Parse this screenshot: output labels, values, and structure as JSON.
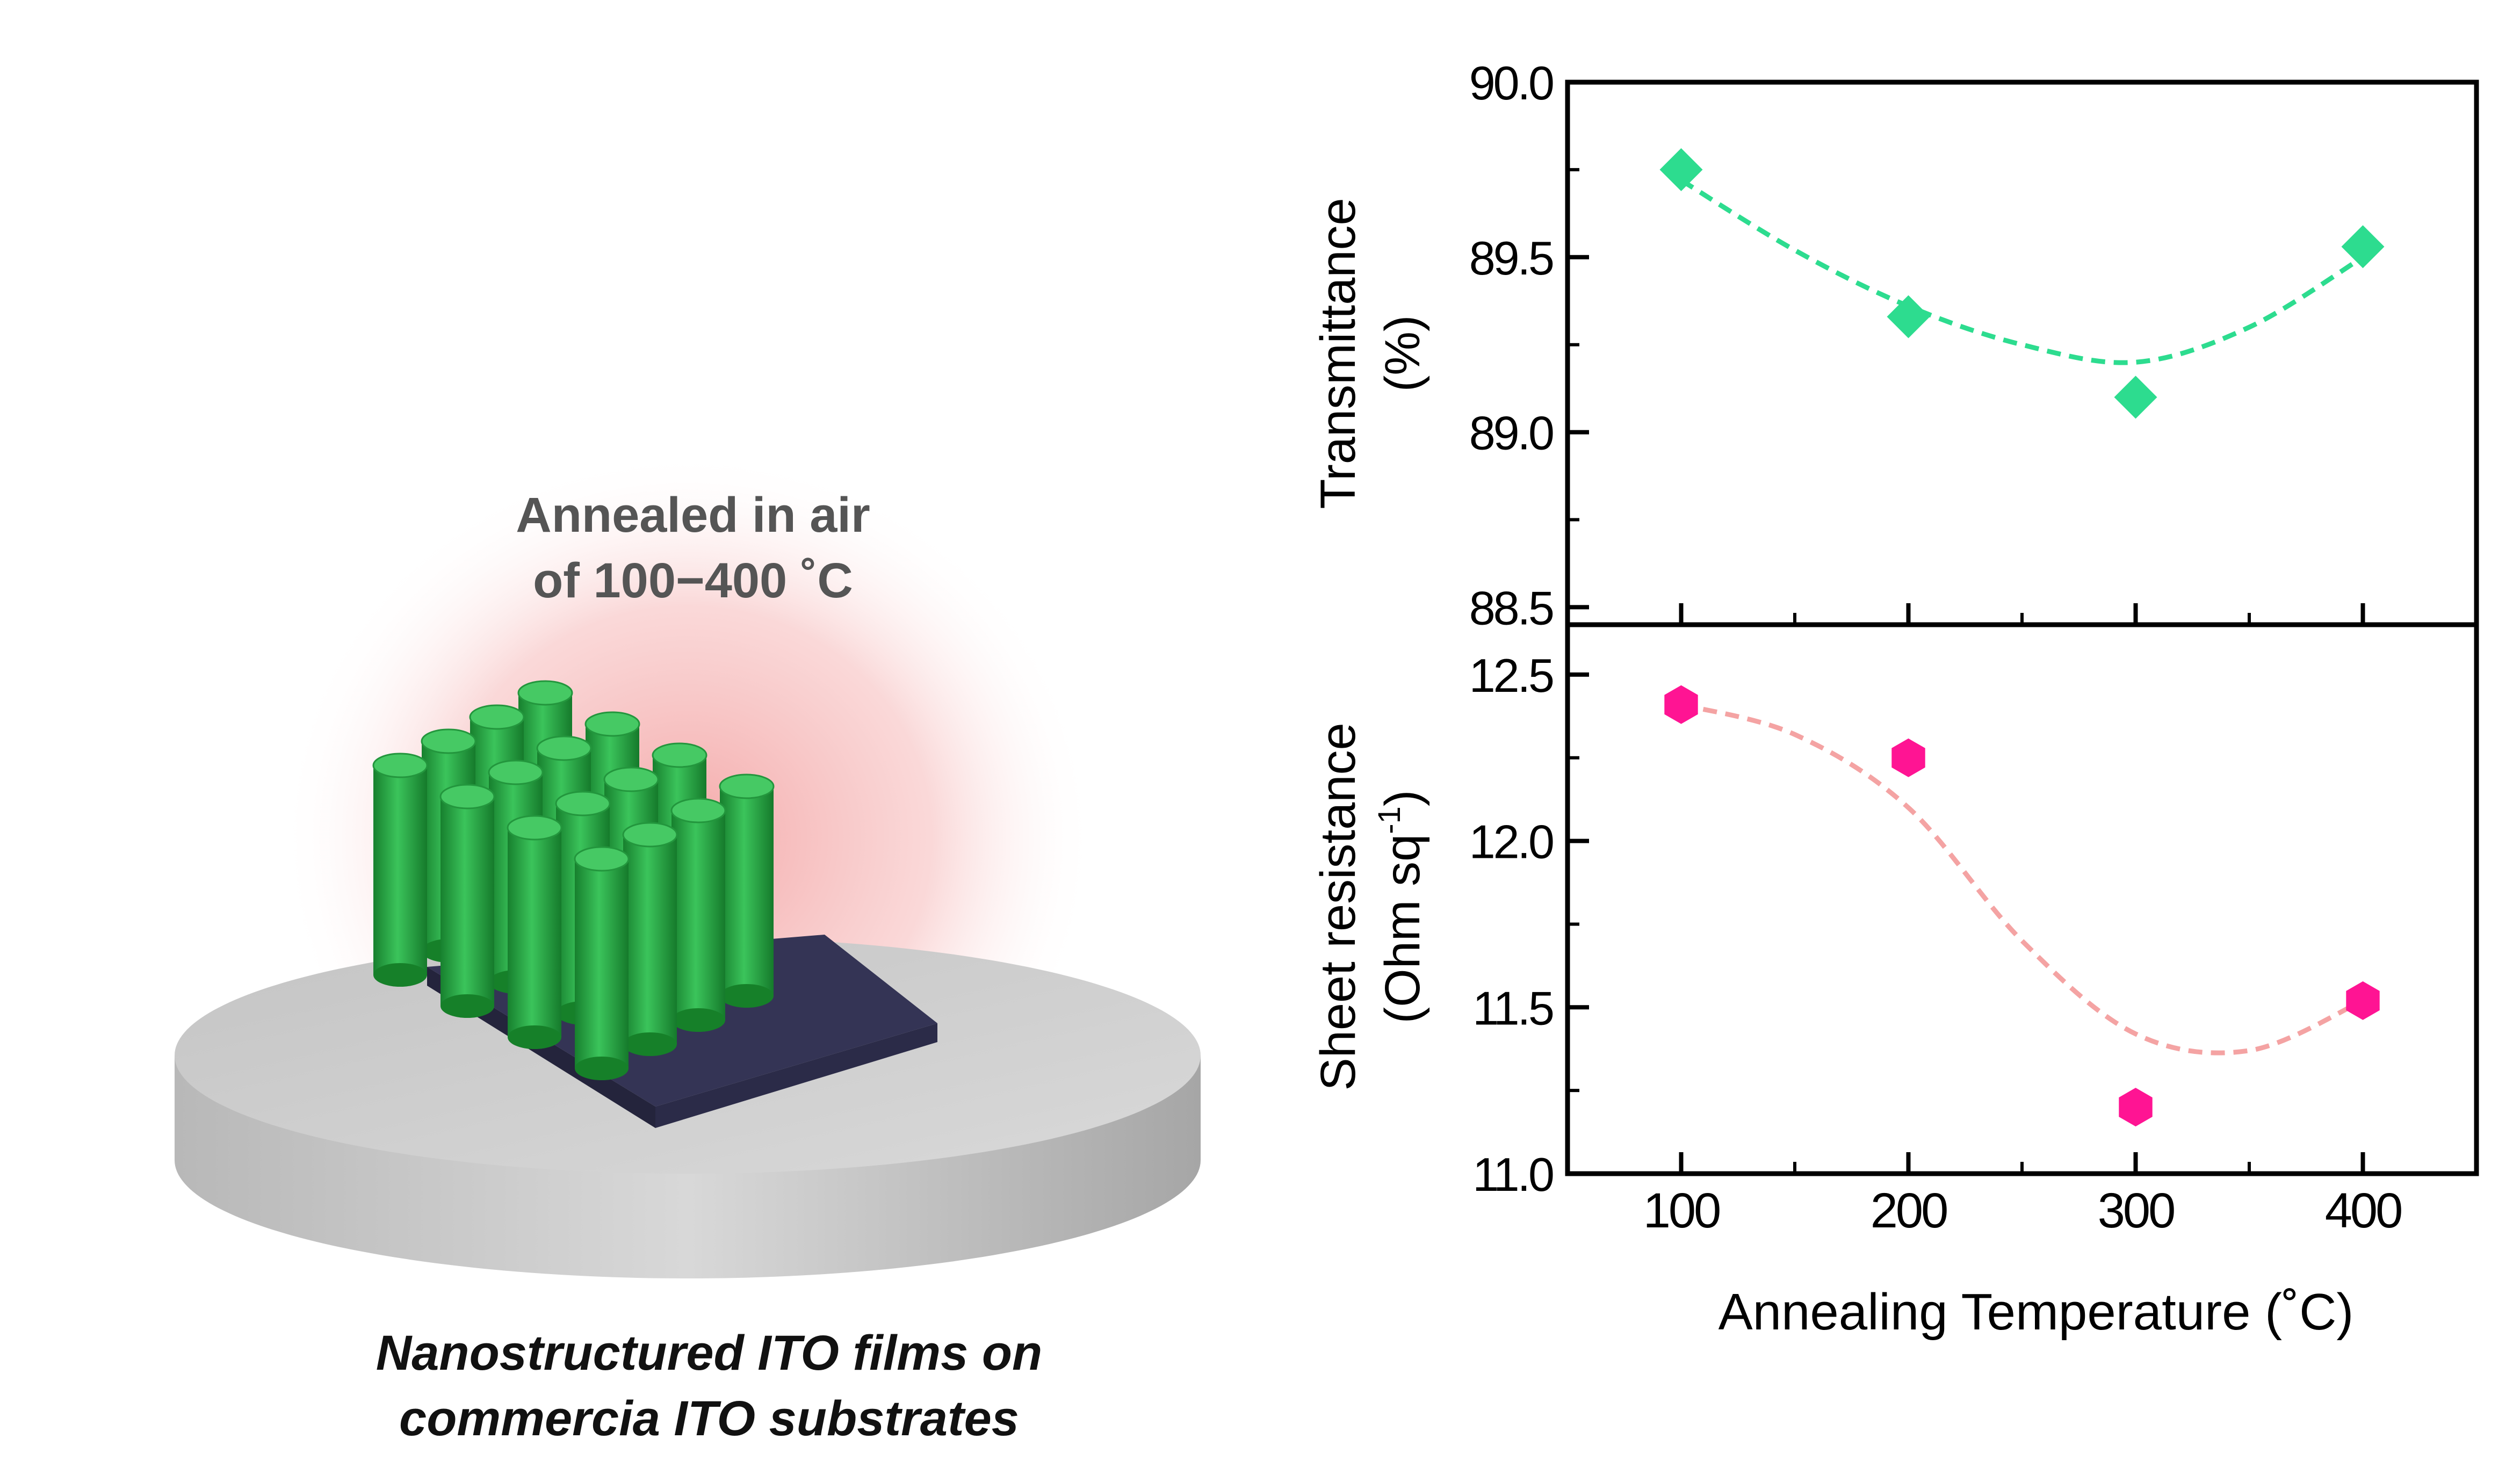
{
  "illustration": {
    "anneal_line1": "Annealed in air",
    "anneal_line2": "of 100−400 ˚C",
    "caption_line1": "Nanostructured ITO films on",
    "caption_line2": "commercia ITO substrates",
    "colors": {
      "glow": "#f5b8b8",
      "disk_top": "#cfcfcf",
      "disk_side": "#a8a8a8",
      "substrate": "#3a3a5e",
      "nanorod": "#2db34a",
      "nanorod_dark": "#1a8a33"
    }
  },
  "chart_data": [
    {
      "type": "line",
      "panel": "top",
      "x": [
        100,
        200,
        300,
        400
      ],
      "values": [
        89.75,
        89.33,
        89.1,
        89.53
      ],
      "ylabel_line1": "Transmittance",
      "ylabel_line2": "(%)",
      "ylim": [
        88.45,
        90.0
      ],
      "yticks": [
        "90.0",
        "89.5",
        "89.0",
        "88.5"
      ],
      "ytick_values": [
        90.0,
        89.5,
        89.0,
        88.5
      ],
      "marker": "diamond",
      "color": "#2ddc8f",
      "fit": [
        [
          100,
          89.72
        ],
        [
          150,
          89.52
        ],
        [
          200,
          89.36
        ],
        [
          250,
          89.25
        ],
        [
          300,
          89.2
        ],
        [
          350,
          89.3
        ],
        [
          400,
          89.5
        ]
      ]
    },
    {
      "type": "line",
      "panel": "bottom",
      "x": [
        100,
        200,
        300,
        400
      ],
      "values": [
        12.41,
        12.25,
        11.2,
        11.52
      ],
      "ylabel_line1": "Sheet resistance",
      "ylabel_line2": "(Ohm sq",
      "ylabel_sup": "-1",
      "ylabel_close": ")",
      "ylim": [
        11.0,
        12.65
      ],
      "yticks": [
        "12.5",
        "12.0",
        "11.5",
        "11.0"
      ],
      "ytick_values": [
        12.5,
        12.0,
        11.5,
        11.0
      ],
      "marker": "hexagon",
      "color": "#ff1493",
      "fit_color": "#f4a3a3",
      "fit": [
        [
          100,
          12.41
        ],
        [
          150,
          12.32
        ],
        [
          200,
          12.1
        ],
        [
          250,
          11.7
        ],
        [
          300,
          11.42
        ],
        [
          350,
          11.37
        ],
        [
          400,
          11.52
        ]
      ]
    }
  ],
  "x_axis": {
    "label": "Annealing Temperature (˚C)",
    "ticks": [
      "100",
      "200",
      "300",
      "400"
    ],
    "tick_values": [
      100,
      200,
      300,
      400
    ],
    "xlim": [
      50,
      450
    ]
  }
}
